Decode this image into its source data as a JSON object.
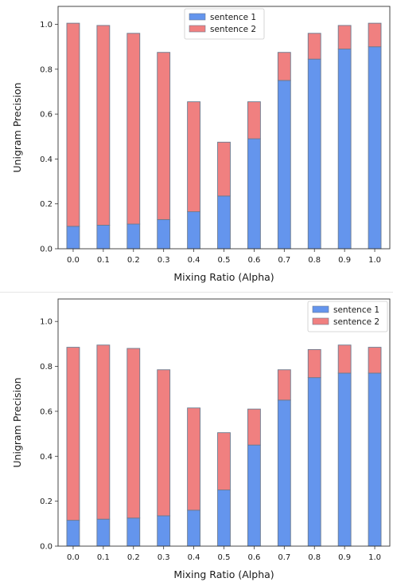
{
  "chart_data": [
    {
      "type": "bar",
      "stacked": true,
      "title": "",
      "xlabel": "Mixing Ratio (Alpha)",
      "ylabel": "Unigram Precision",
      "ylim": [
        0,
        1.08
      ],
      "yticks": [
        "0.0",
        "0.2",
        "0.4",
        "0.6",
        "0.8",
        "1.0"
      ],
      "categories": [
        "0.0",
        "0.1",
        "0.2",
        "0.3",
        "0.4",
        "0.5",
        "0.6",
        "0.7",
        "0.8",
        "0.9",
        "1.0"
      ],
      "series": [
        {
          "name": "sentence 1",
          "color": "#6495ed",
          "values": [
            0.1,
            0.105,
            0.11,
            0.13,
            0.165,
            0.235,
            0.49,
            0.75,
            0.845,
            0.89,
            0.9
          ]
        },
        {
          "name": "sentence 2",
          "color": "#f08080",
          "values": [
            0.905,
            0.89,
            0.85,
            0.745,
            0.49,
            0.24,
            0.165,
            0.125,
            0.115,
            0.105,
            0.105
          ]
        }
      ],
      "grid": false,
      "legend": "top-center"
    },
    {
      "type": "bar",
      "stacked": true,
      "title": "",
      "xlabel": "Mixing Ratio (Alpha)",
      "ylabel": "Unigram Precision",
      "ylim": [
        0,
        1.1
      ],
      "yticks": [
        "0.0",
        "0.2",
        "0.4",
        "0.6",
        "0.8",
        "1.0"
      ],
      "categories": [
        "0.0",
        "0.1",
        "0.2",
        "0.3",
        "0.4",
        "0.5",
        "0.6",
        "0.7",
        "0.8",
        "0.9",
        "1.0"
      ],
      "series": [
        {
          "name": "sentence 1",
          "color": "#6495ed",
          "values": [
            0.115,
            0.12,
            0.125,
            0.135,
            0.16,
            0.25,
            0.45,
            0.65,
            0.75,
            0.77,
            0.77
          ]
        },
        {
          "name": "sentence 2",
          "color": "#f08080",
          "values": [
            0.77,
            0.775,
            0.755,
            0.65,
            0.455,
            0.255,
            0.16,
            0.135,
            0.125,
            0.125,
            0.115
          ]
        }
      ],
      "grid": false,
      "legend": "top-right"
    }
  ]
}
